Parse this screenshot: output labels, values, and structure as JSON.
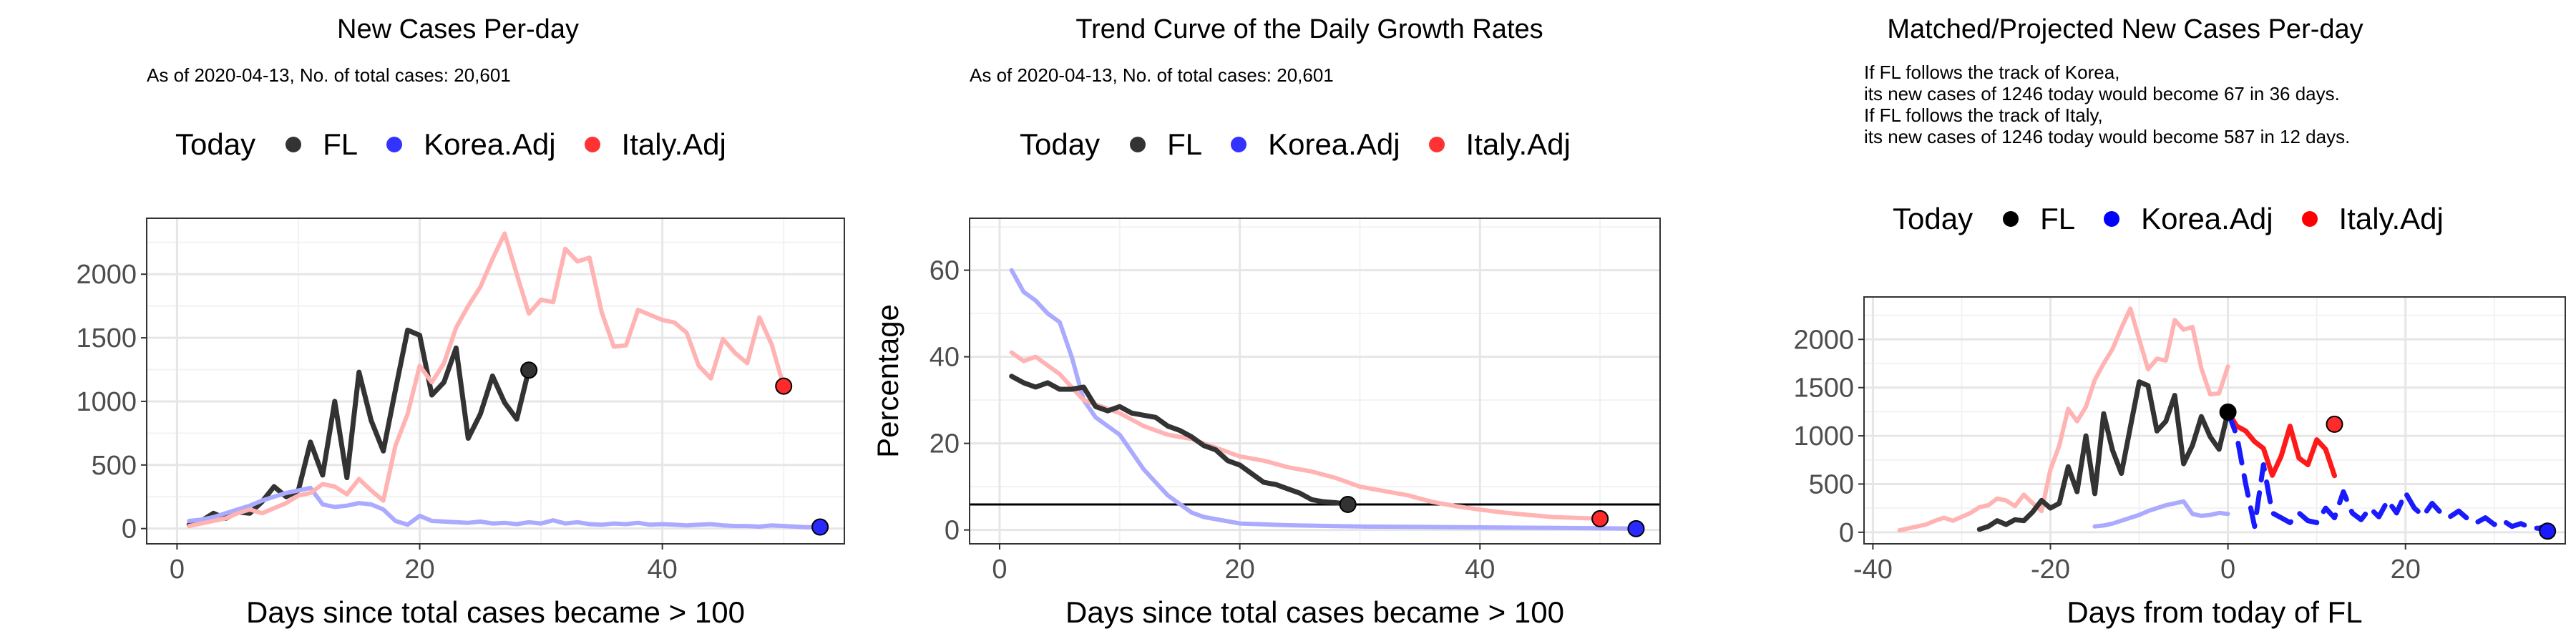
{
  "chart_data": [
    {
      "type": "line",
      "title": "New Cases Per-day",
      "subtitle": "As of 2020-04-13, No. of total cases: 20,601",
      "xlabel": "Days since total cases became > 100",
      "ylabel": "",
      "xlim": [
        -2.5,
        55
      ],
      "ylim": [
        -120,
        2440
      ],
      "xticks": [
        0,
        20,
        40
      ],
      "yticks": [
        0,
        500,
        1000,
        1500,
        2000
      ],
      "grid": true,
      "legend": {
        "title": "Today",
        "position": "top",
        "entries": [
          {
            "label": "FL",
            "color": "#333333"
          },
          {
            "label": "Korea.Adj",
            "color": "#3333ff"
          },
          {
            "label": "Italy.Adj",
            "color": "#ff3333"
          }
        ]
      },
      "series": [
        {
          "name": "FL",
          "color": "#333333",
          "width": 7,
          "x": [
            1,
            2,
            3,
            4,
            5,
            6,
            7,
            8,
            9,
            10,
            11,
            12,
            13,
            14,
            15,
            16,
            17,
            18,
            19,
            20,
            21,
            22,
            23,
            24,
            25,
            26,
            27,
            28,
            29
          ],
          "y": [
            30,
            60,
            120,
            80,
            130,
            120,
            210,
            330,
            250,
            300,
            680,
            420,
            1000,
            400,
            1230,
            850,
            610,
            1090,
            1560,
            1520,
            1050,
            1150,
            1420,
            710,
            900,
            1200,
            990,
            860,
            1250
          ],
          "today": {
            "x": 29,
            "y": 1246
          }
        },
        {
          "name": "Korea.Adj",
          "color": "#aaaaff",
          "width": 6,
          "x": [
            1,
            2,
            3,
            4,
            5,
            6,
            7,
            8,
            9,
            10,
            11,
            12,
            13,
            14,
            15,
            16,
            17,
            18,
            19,
            20,
            21,
            22,
            23,
            24,
            25,
            26,
            27,
            28,
            29,
            30,
            31,
            32,
            33,
            34,
            35,
            36,
            37,
            38,
            39,
            40,
            41,
            42,
            43,
            44,
            45,
            46,
            47,
            48,
            49,
            50,
            51,
            52,
            53
          ],
          "y": [
            60,
            70,
            90,
            120,
            150,
            180,
            220,
            250,
            280,
            300,
            320,
            190,
            170,
            180,
            200,
            190,
            150,
            60,
            30,
            100,
            60,
            55,
            50,
            45,
            55,
            40,
            45,
            35,
            50,
            40,
            65,
            40,
            50,
            35,
            30,
            40,
            35,
            45,
            30,
            35,
            30,
            25,
            30,
            35,
            25,
            20,
            20,
            15,
            25,
            20,
            15,
            10,
            12
          ],
          "today": {
            "x": 53,
            "y": 12
          }
        },
        {
          "name": "Italy.Adj",
          "color": "#ffb3b3",
          "width": 6,
          "x": [
            1,
            2,
            3,
            4,
            5,
            6,
            7,
            8,
            9,
            10,
            11,
            12,
            13,
            14,
            15,
            16,
            17,
            18,
            19,
            20,
            21,
            22,
            23,
            24,
            25,
            26,
            27,
            28,
            29,
            30,
            31,
            32,
            33,
            34,
            35,
            36,
            37,
            38,
            39,
            40,
            41,
            42,
            43,
            44,
            45,
            46,
            47,
            48,
            49,
            50
          ],
          "y": [
            20,
            40,
            60,
            80,
            120,
            150,
            120,
            160,
            200,
            260,
            280,
            350,
            330,
            270,
            390,
            300,
            220,
            650,
            900,
            1280,
            1150,
            1300,
            1580,
            1750,
            1900,
            2120,
            2320,
            2000,
            1690,
            1800,
            1780,
            2200,
            2100,
            2130,
            1700,
            1430,
            1440,
            1720,
            1680,
            1640,
            1620,
            1540,
            1280,
            1180,
            1490,
            1380,
            1300,
            1660,
            1450,
            1120
          ],
          "today": {
            "x": 50,
            "y": 1120
          }
        }
      ]
    },
    {
      "type": "line",
      "title": "Trend Curve of the Daily Growth Rates",
      "subtitle": "As of 2020-04-13, No. of total cases: 20,601",
      "xlabel": "Days since total cases became > 100",
      "ylabel": "Percentage",
      "xlim": [
        -2.5,
        55
      ],
      "ylim": [
        -3.2,
        72
      ],
      "xticks": [
        0,
        20,
        40
      ],
      "yticks": [
        0,
        20,
        40,
        60
      ],
      "grid": true,
      "hline": 5.9,
      "legend": {
        "title": "Today",
        "position": "top",
        "entries": [
          {
            "label": "FL",
            "color": "#333333"
          },
          {
            "label": "Korea.Adj",
            "color": "#3333ff"
          },
          {
            "label": "Italy.Adj",
            "color": "#ff3333"
          }
        ]
      },
      "series": [
        {
          "name": "Korea.Adj",
          "color": "#aaaaff",
          "width": 6,
          "x": [
            1,
            2,
            3,
            4,
            5,
            6,
            7,
            8,
            9,
            10,
            11,
            12,
            13,
            14,
            15,
            16,
            17,
            18,
            19,
            20,
            22,
            24,
            26,
            28,
            30,
            35,
            40,
            45,
            50,
            53
          ],
          "y": [
            60,
            55,
            53,
            50,
            48,
            40,
            30,
            26,
            24,
            22,
            18,
            14,
            11,
            8,
            6,
            4,
            3,
            2.5,
            2,
            1.5,
            1.3,
            1.1,
            1,
            0.9,
            0.8,
            0.7,
            0.6,
            0.5,
            0.4,
            0.3
          ],
          "today": {
            "x": 53,
            "y": 0.3
          }
        },
        {
          "name": "Italy.Adj",
          "color": "#ffb3b3",
          "width": 6,
          "x": [
            1,
            2,
            3,
            4,
            5,
            6,
            7,
            8,
            9,
            10,
            12,
            14,
            16,
            18,
            20,
            22,
            24,
            26,
            28,
            30,
            32,
            34,
            36,
            38,
            40,
            42,
            44,
            46,
            48,
            50
          ],
          "y": [
            41,
            39,
            40,
            38,
            36,
            33,
            30,
            29,
            28,
            27,
            24,
            22,
            21,
            19,
            17,
            16,
            14.5,
            13.5,
            12,
            10,
            9,
            8,
            6.5,
            5.5,
            4.7,
            4,
            3.5,
            3,
            2.8,
            2.6
          ],
          "today": {
            "x": 50,
            "y": 2.6
          }
        },
        {
          "name": "FL",
          "color": "#333333",
          "width": 7,
          "x": [
            1,
            2,
            3,
            4,
            5,
            6,
            7,
            8,
            9,
            10,
            11,
            12,
            13,
            14,
            15,
            16,
            17,
            18,
            19,
            20,
            21,
            22,
            23,
            24,
            25,
            26,
            27,
            28,
            29
          ],
          "y": [
            35.5,
            34,
            33,
            34,
            32.5,
            32.5,
            33,
            28.5,
            27.5,
            28.5,
            27,
            26.5,
            26,
            24,
            23,
            21.5,
            19.5,
            18.5,
            16,
            15,
            13,
            11,
            10.5,
            9.5,
            8.5,
            7,
            6.5,
            6.3,
            5.9
          ],
          "today": {
            "x": 29,
            "y": 5.9
          }
        }
      ]
    },
    {
      "type": "line",
      "title": "Matched/Projected New Cases Per-day",
      "subtitle": "If FL follows the track of Korea,\nits new cases of 1246 today would become 67 in 36 days.\nIf FL follows the track of Italy,\nits new cases of 1246 today would become 587 in 12 days.",
      "xlabel": "Days from today of FL",
      "ylabel": "",
      "xlim": [
        -41,
        38
      ],
      "ylim": [
        -120,
        2440
      ],
      "xticks": [
        -40,
        -20,
        0,
        20
      ],
      "yticks": [
        0,
        500,
        1000,
        1500,
        2000
      ],
      "grid": true,
      "legend": {
        "title": "Today",
        "position": "top",
        "entries": [
          {
            "label": "FL",
            "color": "#000000"
          },
          {
            "label": "Korea.Adj",
            "color": "#0000ff"
          },
          {
            "label": "Italy.Adj",
            "color": "#ff0000"
          }
        ]
      },
      "series": [
        {
          "name": "Italy.Adj",
          "color": "#ffb3b3",
          "width": 6,
          "x": [
            -37,
            -36,
            -35,
            -34,
            -33,
            -32,
            -31,
            -30,
            -29,
            -28,
            -27,
            -26,
            -25,
            -24,
            -23,
            -22,
            -21,
            -20,
            -19,
            -18,
            -17,
            -16,
            -15,
            -14,
            -13,
            -12,
            -11,
            -10,
            -9,
            -8,
            -7,
            -6,
            -5,
            -4,
            -3,
            -2,
            -1,
            0
          ],
          "y": [
            20,
            40,
            60,
            80,
            120,
            150,
            120,
            160,
            200,
            260,
            280,
            350,
            330,
            270,
            390,
            300,
            220,
            650,
            900,
            1280,
            1150,
            1300,
            1580,
            1750,
            1900,
            2120,
            2320,
            2000,
            1690,
            1800,
            1780,
            2200,
            2100,
            2130,
            1700,
            1430,
            1440,
            1720
          ]
        },
        {
          "name": "Italy.Adj (projected)",
          "color": "#ff1a1a",
          "width": 7,
          "dashed": false,
          "x": [
            0,
            1,
            2,
            3,
            4,
            5,
            6,
            7,
            8,
            9,
            10,
            11,
            12
          ],
          "y": [
            1246,
            1100,
            1050,
            940,
            870,
            590,
            790,
            1100,
            770,
            700,
            960,
            860,
            587
          ],
          "today": {
            "x": 12,
            "y": 1120
          }
        },
        {
          "name": "Korea.Adj",
          "color": "#aaaaff",
          "width": 6,
          "x": [
            -15,
            -14,
            -13,
            -12,
            -11,
            -10,
            -9,
            -8,
            -7,
            -6,
            -5,
            -4,
            -3,
            -2,
            -1,
            0
          ],
          "y": [
            60,
            70,
            90,
            120,
            150,
            180,
            220,
            250,
            280,
            300,
            320,
            190,
            170,
            180,
            200,
            190
          ]
        },
        {
          "name": "Korea.Adj (projected)",
          "color": "#1a1aff",
          "width": 7,
          "dashed": true,
          "x": [
            0,
            1,
            2,
            3,
            4,
            5,
            6,
            7,
            8,
            9,
            10,
            11,
            12,
            13,
            14,
            15,
            16,
            17,
            18,
            19,
            20,
            21,
            22,
            23,
            24,
            25,
            26,
            27,
            28,
            29,
            30,
            31,
            32,
            33,
            34,
            35,
            36
          ],
          "y": [
            1246,
            1000,
            500,
            60,
            700,
            200,
            150,
            100,
            200,
            120,
            100,
            250,
            150,
            420,
            200,
            130,
            250,
            160,
            330,
            200,
            410,
            250,
            170,
            300,
            200,
            160,
            220,
            140,
            100,
            150,
            80,
            120,
            60,
            90,
            50,
            40,
            67
          ],
          "today": {
            "x": 36,
            "y": 12
          }
        },
        {
          "name": "FL",
          "color": "#333333",
          "width": 7,
          "x": [
            -28,
            -27,
            -26,
            -25,
            -24,
            -23,
            -22,
            -21,
            -20,
            -19,
            -18,
            -17,
            -16,
            -15,
            -14,
            -13,
            -12,
            -11,
            -10,
            -9,
            -8,
            -7,
            -6,
            -5,
            -4,
            -3,
            -2,
            -1,
            0
          ],
          "y": [
            30,
            60,
            120,
            80,
            130,
            120,
            210,
            330,
            250,
            300,
            680,
            420,
            1000,
            400,
            1230,
            850,
            610,
            1090,
            1560,
            1520,
            1050,
            1150,
            1420,
            710,
            900,
            1200,
            990,
            860,
            1246
          ],
          "today": {
            "x": 0,
            "y": 1246
          }
        }
      ]
    }
  ]
}
